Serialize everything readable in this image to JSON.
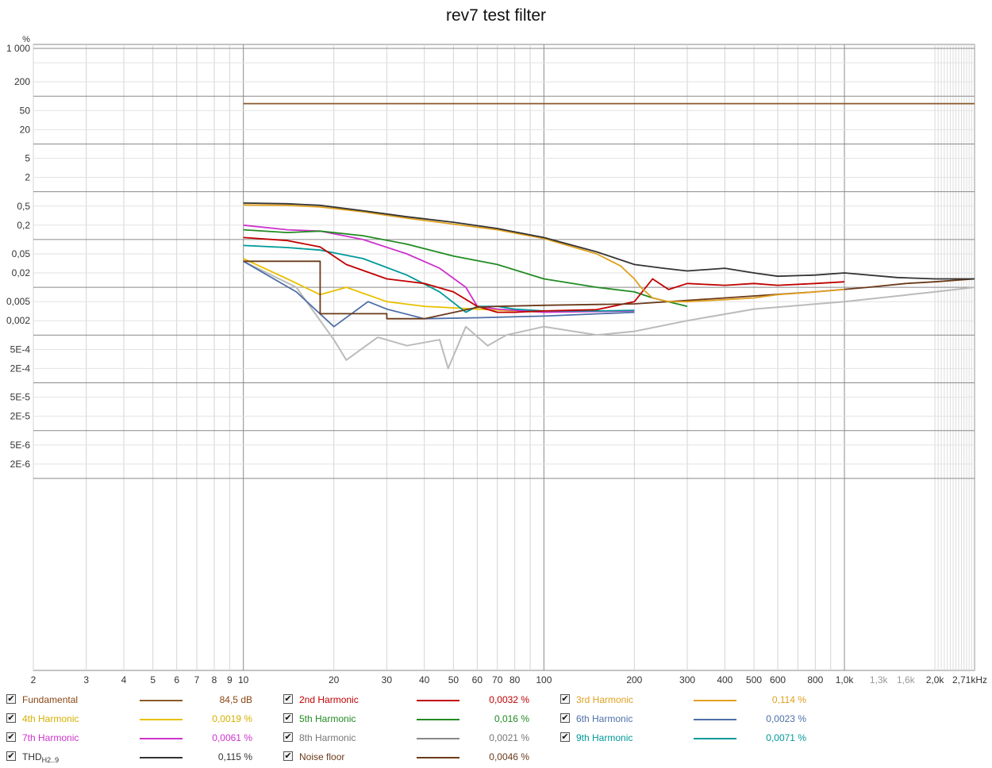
{
  "chart_data": {
    "type": "line",
    "title": "rev7 test filter",
    "ylabel": "%",
    "xscale": "log",
    "yscale": "log",
    "xlim": [
      2,
      2710
    ],
    "ylim": [
      1e-06,
      1000
    ],
    "x_tick_labels": [
      {
        "v": 2,
        "t": "2"
      },
      {
        "v": 3,
        "t": "3"
      },
      {
        "v": 4,
        "t": "4"
      },
      {
        "v": 5,
        "t": "5"
      },
      {
        "v": 6,
        "t": "6"
      },
      {
        "v": 7,
        "t": "7"
      },
      {
        "v": 8,
        "t": "8"
      },
      {
        "v": 9,
        "t": "9"
      },
      {
        "v": 10,
        "t": "10"
      },
      {
        "v": 20,
        "t": "20"
      },
      {
        "v": 30,
        "t": "30"
      },
      {
        "v": 40,
        "t": "40"
      },
      {
        "v": 50,
        "t": "50"
      },
      {
        "v": 60,
        "t": "60"
      },
      {
        "v": 70,
        "t": "70"
      },
      {
        "v": 80,
        "t": "80"
      },
      {
        "v": 100,
        "t": "100"
      },
      {
        "v": 200,
        "t": "200"
      },
      {
        "v": 300,
        "t": "300"
      },
      {
        "v": 400,
        "t": "400"
      },
      {
        "v": 500,
        "t": "500"
      },
      {
        "v": 600,
        "t": "600"
      },
      {
        "v": 800,
        "t": "800"
      },
      {
        "v": 1000,
        "t": "1,0k"
      },
      {
        "v": 1300,
        "t": "1,3k",
        "gray": true
      },
      {
        "v": 1600,
        "t": "1,6k",
        "gray": true
      },
      {
        "v": 2000,
        "t": "2,0k"
      },
      {
        "v": 2710,
        "t": "2,71kHz"
      }
    ],
    "y_tick_labels": [
      {
        "v": 1000,
        "t": "1 000"
      },
      {
        "v": 200,
        "t": "200"
      },
      {
        "v": 50,
        "t": "50"
      },
      {
        "v": 20,
        "t": "20"
      },
      {
        "v": 5,
        "t": "5"
      },
      {
        "v": 2,
        "t": "2"
      },
      {
        "v": 0.5,
        "t": "0,5"
      },
      {
        "v": 0.2,
        "t": "0,2"
      },
      {
        "v": 0.05,
        "t": "0,05"
      },
      {
        "v": 0.02,
        "t": "0,02"
      },
      {
        "v": 0.005,
        "t": "0,005"
      },
      {
        "v": 0.002,
        "t": "0,002"
      },
      {
        "v": 0.0005,
        "t": "5E-4"
      },
      {
        "v": 0.0002,
        "t": "2E-4"
      },
      {
        "v": 5e-05,
        "t": "5E-5"
      },
      {
        "v": 2e-05,
        "t": "2E-5"
      },
      {
        "v": 5e-06,
        "t": "5E-6"
      },
      {
        "v": 2e-06,
        "t": "2E-6"
      }
    ],
    "series": [
      {
        "name": "Fundamental",
        "color": "#8B5A2B",
        "x": [
          10,
          2710
        ],
        "y": [
          70,
          70
        ]
      },
      {
        "name": "Noise floor",
        "color": "#6B3A1A",
        "x": [
          10,
          18,
          18,
          30,
          30,
          40,
          60,
          70,
          100,
          200,
          400,
          800,
          1200,
          1600,
          2000,
          2710
        ],
        "y": [
          0.035,
          0.035,
          0.0028,
          0.0028,
          0.0022,
          0.0022,
          0.0038,
          0.004,
          0.0042,
          0.0045,
          0.006,
          0.008,
          0.01,
          0.012,
          0.013,
          0.015
        ]
      },
      {
        "name": "THD",
        "color": "#333333",
        "x": [
          10,
          14,
          18,
          25,
          35,
          50,
          70,
          100,
          150,
          200,
          250,
          300,
          400,
          500,
          600,
          800,
          1000,
          1500,
          2000,
          2710
        ],
        "y": [
          0.58,
          0.56,
          0.52,
          0.4,
          0.3,
          0.23,
          0.17,
          0.11,
          0.055,
          0.03,
          0.025,
          0.022,
          0.025,
          0.02,
          0.017,
          0.018,
          0.02,
          0.016,
          0.015,
          0.015
        ]
      },
      {
        "name": "3rd Harmonic",
        "color": "#E0A020",
        "x": [
          10,
          14,
          18,
          25,
          35,
          50,
          70,
          100,
          150,
          180,
          200,
          210,
          230,
          260,
          300,
          400,
          500,
          600,
          800,
          1000
        ],
        "y": [
          0.53,
          0.52,
          0.48,
          0.38,
          0.28,
          0.21,
          0.16,
          0.105,
          0.05,
          0.028,
          0.015,
          0.01,
          0.006,
          0.005,
          0.005,
          0.0055,
          0.006,
          0.007,
          0.008,
          0.009
        ]
      },
      {
        "name": "2nd Harmonic",
        "color": "#C00000",
        "x": [
          10,
          14,
          18,
          22,
          30,
          40,
          50,
          60,
          70,
          80,
          100,
          150,
          200,
          230,
          260,
          300,
          400,
          500,
          600,
          800,
          1000
        ],
        "y": [
          0.11,
          0.095,
          0.07,
          0.03,
          0.015,
          0.012,
          0.008,
          0.004,
          0.003,
          0.003,
          0.0032,
          0.0034,
          0.005,
          0.015,
          0.009,
          0.012,
          0.011,
          0.012,
          0.011,
          0.012,
          0.013
        ]
      },
      {
        "name": "5th Harmonic",
        "color": "#228B22",
        "x": [
          10,
          14,
          18,
          25,
          35,
          50,
          70,
          100,
          150,
          200,
          230,
          300
        ],
        "y": [
          0.16,
          0.14,
          0.15,
          0.12,
          0.08,
          0.045,
          0.03,
          0.015,
          0.01,
          0.008,
          0.006,
          0.004
        ]
      },
      {
        "name": "9th Harmonic",
        "color": "#009999",
        "x": [
          10,
          14,
          18,
          25,
          35,
          45,
          55,
          60,
          70,
          80,
          100,
          150,
          200
        ],
        "y": [
          0.075,
          0.068,
          0.06,
          0.04,
          0.018,
          0.008,
          0.003,
          0.004,
          0.004,
          0.0035,
          0.0032,
          0.0032,
          0.0033
        ]
      },
      {
        "name": "7th Harmonic",
        "color": "#CC33CC",
        "x": [
          10,
          14,
          18,
          25,
          35,
          45,
          55,
          60,
          70,
          100,
          200
        ],
        "y": [
          0.2,
          0.16,
          0.15,
          0.1,
          0.05,
          0.025,
          0.01,
          0.004,
          0.0035,
          0.003,
          0.0032
        ]
      },
      {
        "name": "4th Harmonic",
        "color": "#E8C000",
        "x": [
          10,
          14,
          18,
          22,
          30,
          40,
          60,
          100
        ],
        "y": [
          0.04,
          0.015,
          0.007,
          0.01,
          0.005,
          0.004,
          0.0035,
          0.003
        ]
      },
      {
        "name": "6th Harmonic",
        "color": "#4F6FA8",
        "x": [
          10,
          15,
          20,
          26,
          30,
          40,
          60,
          100,
          200
        ],
        "y": [
          0.035,
          0.008,
          0.0015,
          0.005,
          0.0035,
          0.0022,
          0.0023,
          0.0025,
          0.003
        ]
      },
      {
        "name": "8th Harmonic",
        "color": "#BBBBBB",
        "x": [
          10,
          15,
          20,
          22,
          28,
          35,
          45,
          48,
          55,
          65,
          75,
          100,
          150,
          200,
          300,
          500,
          1000,
          2000,
          2710
        ],
        "y": [
          0.035,
          0.01,
          0.0008,
          0.0003,
          0.0009,
          0.0006,
          0.0008,
          0.0002,
          0.0015,
          0.0006,
          0.001,
          0.0015,
          0.001,
          0.0012,
          0.002,
          0.0035,
          0.005,
          0.008,
          0.01
        ]
      }
    ]
  },
  "legend": [
    {
      "name": "Fundamental",
      "name_color": "#8B4513",
      "swatch": "#8B5A2B",
      "value": "84,5 dB",
      "value_color": "#8B4513"
    },
    {
      "name": "2nd Harmonic",
      "name_color": "#C00000",
      "swatch": "#C00000",
      "value": "0,0032 %",
      "value_color": "#C00000"
    },
    {
      "name": "3rd Harmonic",
      "name_color": "#E0A020",
      "swatch": "#E0A020",
      "value": "0,114 %",
      "value_color": "#E0A020"
    },
    {
      "name": "4th Harmonic",
      "name_color": "#D4B000",
      "swatch": "#E8C000",
      "value": "0,0019 %",
      "value_color": "#D4B000"
    },
    {
      "name": "5th Harmonic",
      "name_color": "#228B22",
      "swatch": "#228B22",
      "value": "0,016 %",
      "value_color": "#228B22"
    },
    {
      "name": "6th Harmonic",
      "name_color": "#4F6FA8",
      "swatch": "#4F6FA8",
      "value": "0,0023 %",
      "value_color": "#4F6FA8"
    },
    {
      "name": "7th Harmonic",
      "name_color": "#CC33CC",
      "swatch": "#CC33CC",
      "value": "0,0061 %",
      "value_color": "#CC33CC"
    },
    {
      "name": "8th Harmonic",
      "name_color": "#777777",
      "swatch": "#888888",
      "value": "0,0021 %",
      "value_color": "#777777"
    },
    {
      "name": "9th Harmonic",
      "name_color": "#009999",
      "swatch": "#009999",
      "value": "0,0071 %",
      "value_color": "#009999"
    },
    {
      "name": "THD",
      "name_sub": "H2..9",
      "name_color": "#333333",
      "swatch": "#333333",
      "value": "0,115 %",
      "value_color": "#333333"
    },
    {
      "name": "Noise floor",
      "name_color": "#6B3A1A",
      "swatch": "#6B3A1A",
      "value": "0,0046 %",
      "value_color": "#6B3A1A"
    }
  ],
  "checkbox_glyph": "✔"
}
